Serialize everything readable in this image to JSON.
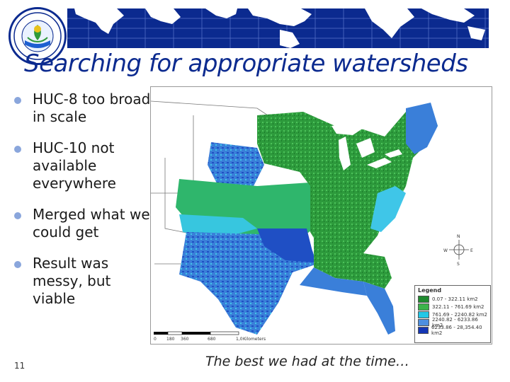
{
  "slide": {
    "title": "Searching for appropriate watersheds",
    "bullets": [
      "HUC-8 too broad in scale",
      "HUC-10 not available everywhere",
      "Merged what we could get",
      "Result was messy, but viable"
    ],
    "caption": "The best we had at the time…",
    "slide_number": "11"
  },
  "map": {
    "legend": {
      "title": "Legend",
      "items": [
        {
          "label": "0.07 - 322.11 km2",
          "color": "#1e8a2e"
        },
        {
          "label": "322.11 - 761.69 km2",
          "color": "#3cb44b"
        },
        {
          "label": "761.69 - 2240.82 km2",
          "color": "#22c7e6"
        },
        {
          "label": "2240.82 - 6233.86 km2",
          "color": "#4d8fe0"
        },
        {
          "label": "6233.86 - 28,354.40 km2",
          "color": "#1436b5"
        }
      ]
    },
    "scale_ticks": [
      "0",
      "180",
      "360",
      "680",
      "1,0"
    ],
    "scale_unit": "Kilometers",
    "compass": {
      "n": "N",
      "e": "E",
      "s": "S",
      "w": "W"
    }
  },
  "colors": {
    "brand": "#0b2a8f",
    "bullet": "#8aa6dc"
  }
}
